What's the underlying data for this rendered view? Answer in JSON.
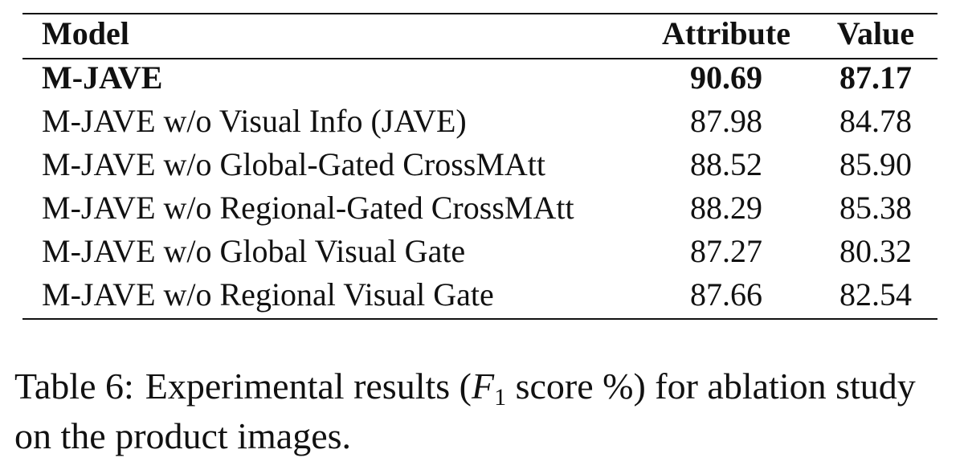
{
  "table": {
    "header": [
      "Model",
      "Attribute",
      "Value"
    ],
    "rows": [
      [
        "M-JAVE",
        "90.69",
        "87.17"
      ],
      [
        "M-JAVE w/o Visual Info (JAVE)",
        "87.98",
        "84.78"
      ],
      [
        "M-JAVE w/o Global-Gated CrossMAtt",
        "88.52",
        "85.90"
      ],
      [
        "M-JAVE w/o Regional-Gated CrossMAtt",
        "88.29",
        "85.38"
      ],
      [
        "M-JAVE w/o Global Visual Gate",
        "87.27",
        "80.32"
      ],
      [
        "M-JAVE w/o Regional Visual Gate",
        "87.66",
        "82.54"
      ]
    ]
  },
  "caption": {
    "label": "Table 6:",
    "before": "Experimental results (",
    "math": "F",
    "subscript": "1",
    "after": " score %) for ablation study on the product images."
  }
}
